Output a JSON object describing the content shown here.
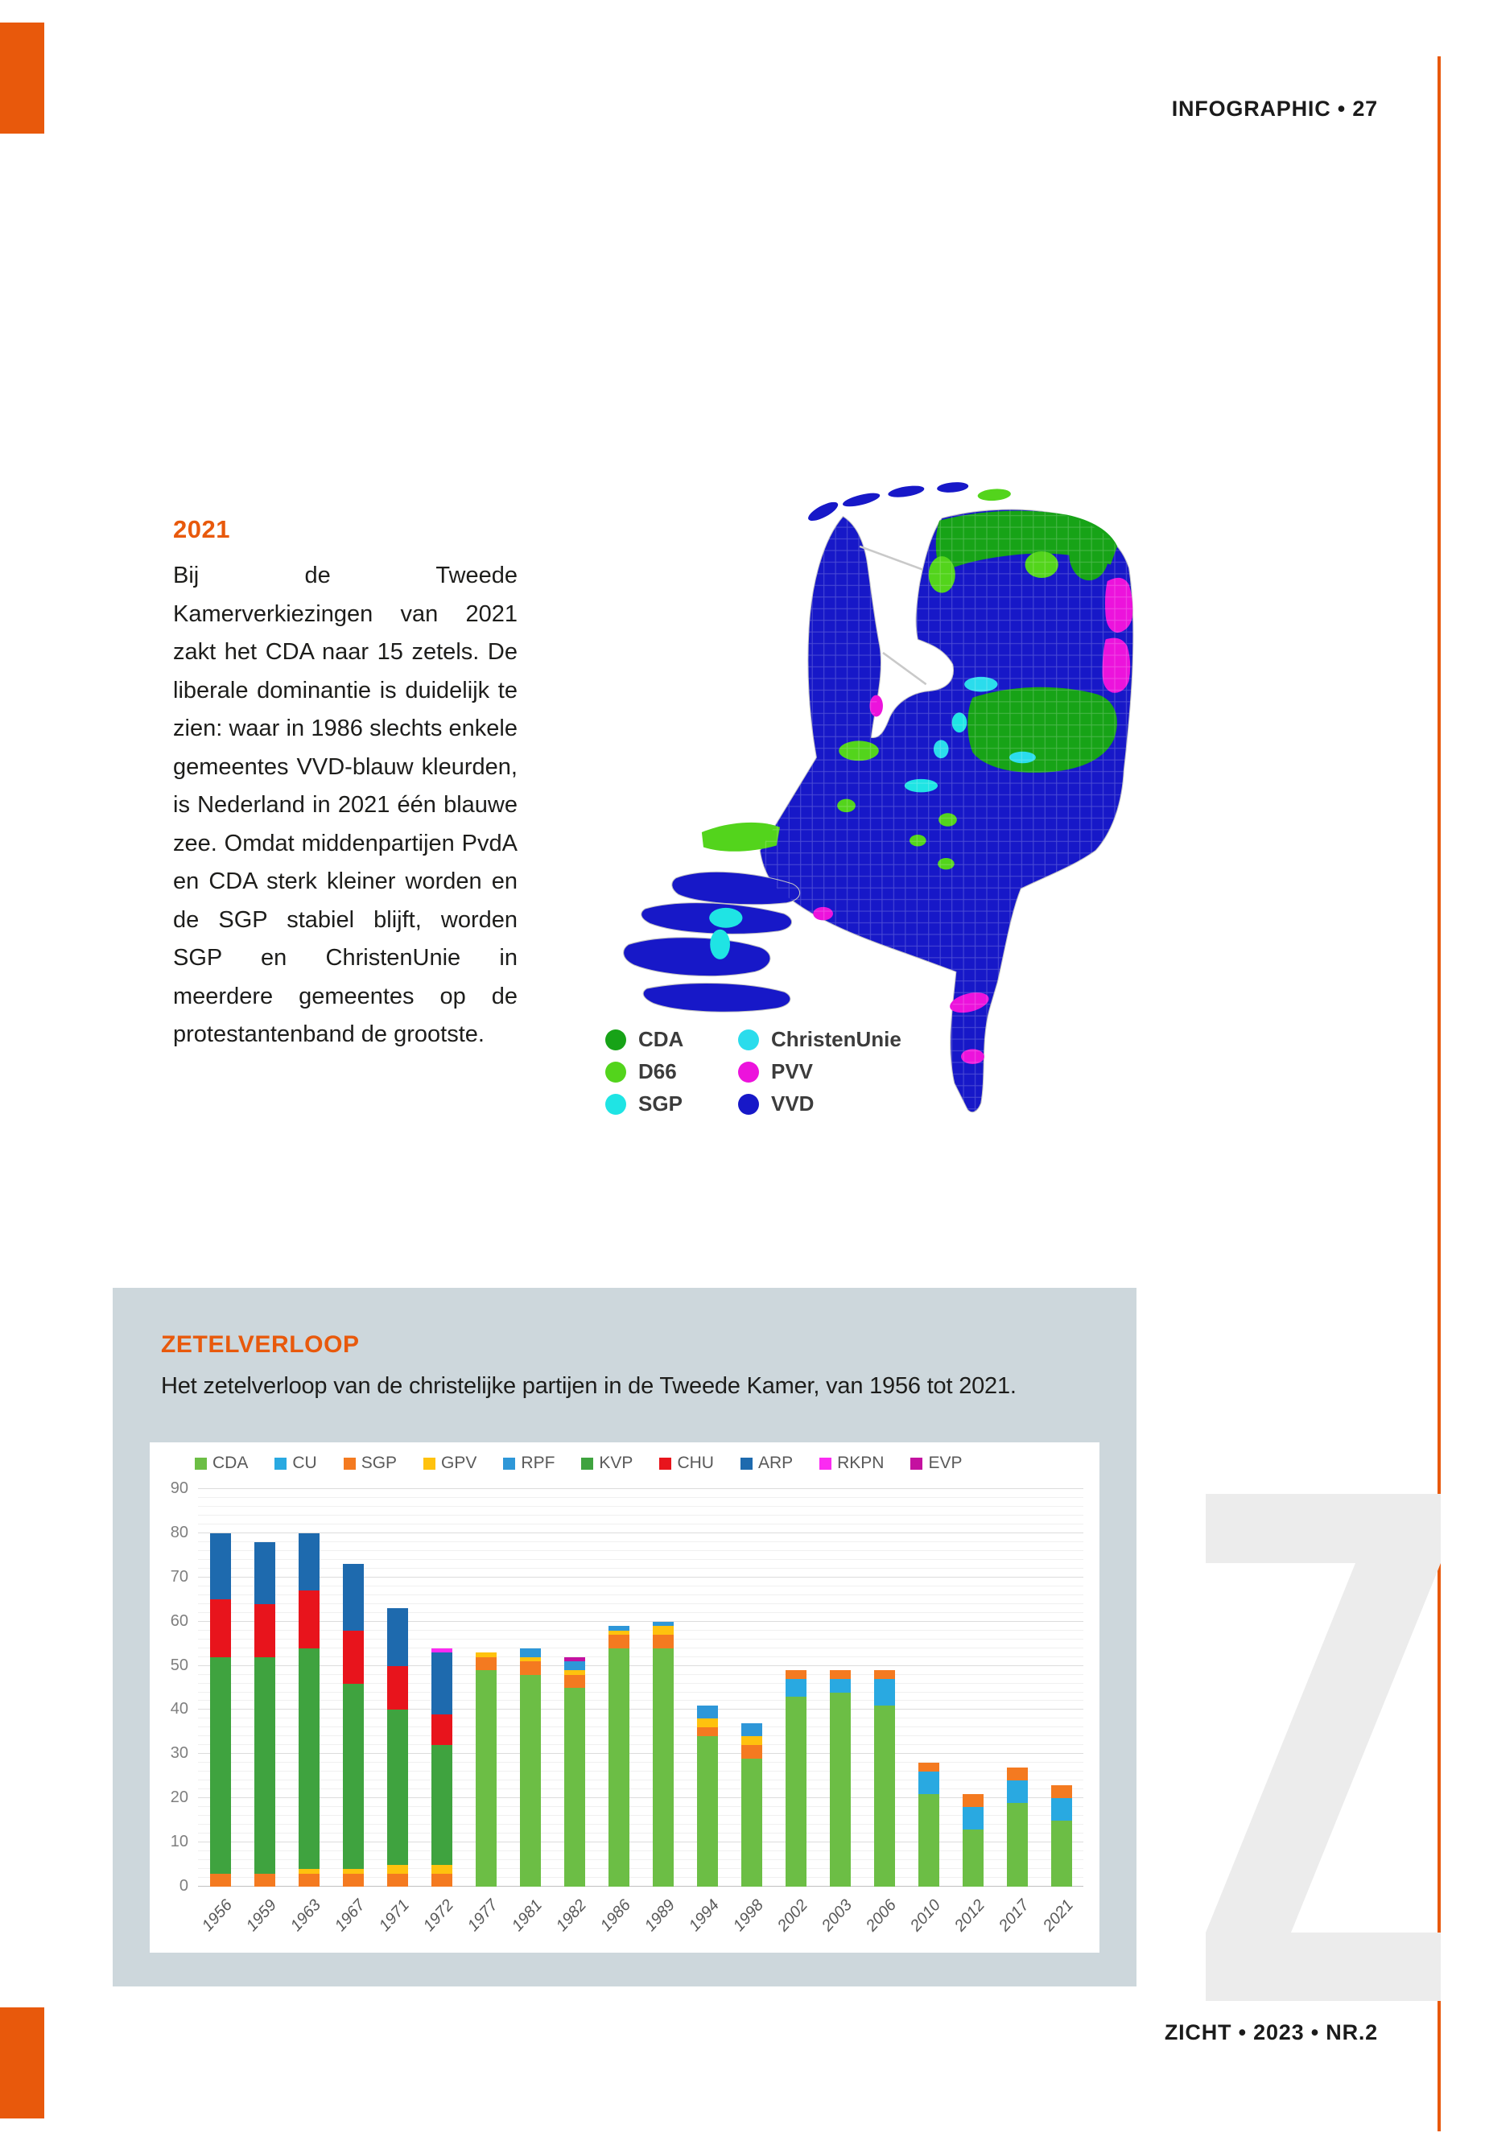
{
  "page": {
    "header": "INFOGRAPHIC • 27",
    "footer": "ZICHT • 2023 • NR.2",
    "accent_color": "#E8590C",
    "watermark_letter": "Z"
  },
  "article": {
    "heading": "2021",
    "body": "Bij de Tweede Kamerverkiezingen van 2021 zakt het CDA naar 15 zetels. De liberale dominantie is duidelijk te zien: waar in 1986 slechts enkele gemeentes VVD-blauw kleurden, is Nederland in 2021 één blauwe zee. Omdat middenpartijen PvdA en CDA sterk kleiner worden en de SGP stabiel blijft, worden SGP en ChristenUnie in meerdere gemeentes op de protestantenband de grootste."
  },
  "map": {
    "colors": {
      "cda": "#17A317",
      "d66": "#53D41C",
      "sgp": "#1FE4E4",
      "cu": "#2BDCEC",
      "pvv": "#EC13DC",
      "vvd": "#1718C8"
    },
    "legend": [
      {
        "label": "CDA",
        "party": "cda"
      },
      {
        "label": "D66",
        "party": "d66"
      },
      {
        "label": "SGP",
        "party": "sgp"
      },
      {
        "label": "ChristenUnie",
        "party": "cu"
      },
      {
        "label": "PVV",
        "party": "pvv"
      },
      {
        "label": "VVD",
        "party": "vvd"
      }
    ]
  },
  "panel": {
    "heading": "ZETELVERLOOP",
    "subtitle": "Het zetelverloop van de christelijke partijen in de Tweede Kamer, van 1956 tot 2021."
  },
  "chart_data": {
    "type": "bar",
    "stacked": true,
    "title": "",
    "xlabel": "",
    "ylabel": "",
    "ylim": [
      0,
      90
    ],
    "ytick_step": 10,
    "minor_step": 2,
    "grid": true,
    "legend_position": "top-left",
    "categories": [
      "1956",
      "1959",
      "1963",
      "1967",
      "1971",
      "1972",
      "1977",
      "1981",
      "1982",
      "1986",
      "1989",
      "1994",
      "1998",
      "2002",
      "2003",
      "2006",
      "2010",
      "2012",
      "2017",
      "2021"
    ],
    "series": [
      {
        "name": "CDA",
        "color": "#6CBE45",
        "values": [
          0,
          0,
          0,
          0,
          0,
          0,
          49,
          48,
          45,
          54,
          54,
          34,
          29,
          43,
          44,
          41,
          21,
          13,
          19,
          15
        ]
      },
      {
        "name": "CU",
        "color": "#29A9E1",
        "values": [
          0,
          0,
          0,
          0,
          0,
          0,
          0,
          0,
          0,
          0,
          0,
          0,
          0,
          4,
          3,
          6,
          5,
          5,
          5,
          5
        ]
      },
      {
        "name": "SGP",
        "color": "#F47A20",
        "values": [
          3,
          3,
          3,
          3,
          3,
          3,
          3,
          3,
          3,
          3,
          3,
          2,
          3,
          2,
          2,
          2,
          2,
          3,
          3,
          3
        ]
      },
      {
        "name": "GPV",
        "color": "#FFC20E",
        "values": [
          0,
          0,
          1,
          1,
          2,
          2,
          1,
          1,
          1,
          1,
          2,
          2,
          2,
          0,
          0,
          0,
          0,
          0,
          0,
          0
        ]
      },
      {
        "name": "RPF",
        "color": "#2E97D8",
        "values": [
          0,
          0,
          0,
          0,
          0,
          0,
          0,
          2,
          2,
          1,
          1,
          3,
          3,
          0,
          0,
          0,
          0,
          0,
          0,
          0
        ]
      },
      {
        "name": "KVP",
        "color": "#3FA33F",
        "values": [
          49,
          49,
          50,
          42,
          35,
          27,
          0,
          0,
          0,
          0,
          0,
          0,
          0,
          0,
          0,
          0,
          0,
          0,
          0,
          0
        ]
      },
      {
        "name": "CHU",
        "color": "#E8141C",
        "values": [
          13,
          12,
          13,
          12,
          10,
          7,
          0,
          0,
          0,
          0,
          0,
          0,
          0,
          0,
          0,
          0,
          0,
          0,
          0,
          0
        ]
      },
      {
        "name": "ARP",
        "color": "#1E6AAE",
        "values": [
          15,
          14,
          13,
          15,
          13,
          14,
          0,
          0,
          0,
          0,
          0,
          0,
          0,
          0,
          0,
          0,
          0,
          0,
          0,
          0
        ]
      },
      {
        "name": "RKPN",
        "color": "#FB2BF2",
        "values": [
          0,
          0,
          0,
          0,
          0,
          1,
          0,
          0,
          0,
          0,
          0,
          0,
          0,
          0,
          0,
          0,
          0,
          0,
          0,
          0
        ]
      },
      {
        "name": "EVP",
        "color": "#C411A0",
        "values": [
          0,
          0,
          0,
          0,
          0,
          0,
          0,
          0,
          1,
          0,
          0,
          0,
          0,
          0,
          0,
          0,
          0,
          0,
          0,
          0
        ]
      }
    ]
  }
}
